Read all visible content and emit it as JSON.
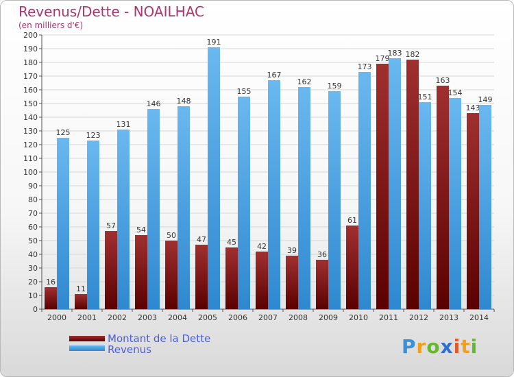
{
  "header": {
    "title": "Revenus/Dette - NOAILHAC",
    "subtitle": "(en milliers d'€)"
  },
  "legend": {
    "dette_label": "Montant de la Dette",
    "revenus_label": "Revenus"
  },
  "logo": {
    "letters": [
      "P",
      "r",
      "o",
      "x",
      "i",
      "t",
      "i"
    ],
    "colors": [
      "#3a8fd8",
      "#f0a020",
      "#66b82c",
      "#2e6fd0",
      "#e05a2a",
      "#f0a020",
      "#66b82c"
    ]
  },
  "colors": {
    "dette_top": "#a03030",
    "dette_bottom": "#5a0000",
    "revenus_top": "#6ab8f0",
    "revenus_bottom": "#2f88cf",
    "title": "#b0346e",
    "legend_text": "#4a5ee0"
  },
  "chart_data": {
    "type": "bar",
    "categories": [
      "2000",
      "2001",
      "2002",
      "2003",
      "2004",
      "2005",
      "2006",
      "2007",
      "2008",
      "2009",
      "2010",
      "2011",
      "2012",
      "2013",
      "2014"
    ],
    "series": [
      {
        "name": "Montant de la Dette",
        "values": [
          16,
          11,
          57,
          54,
          50,
          47,
          45,
          42,
          39,
          36,
          61,
          179,
          182,
          163,
          143
        ]
      },
      {
        "name": "Revenus",
        "values": [
          125,
          123,
          131,
          146,
          148,
          191,
          155,
          167,
          162,
          159,
          173,
          183,
          151,
          154,
          149
        ]
      }
    ],
    "title": "Revenus/Dette - NOAILHAC",
    "subtitle": "(en milliers d'€)",
    "ylim": [
      0,
      200
    ],
    "ytick_step": 10,
    "grid": true,
    "legend": "bottom-left"
  }
}
